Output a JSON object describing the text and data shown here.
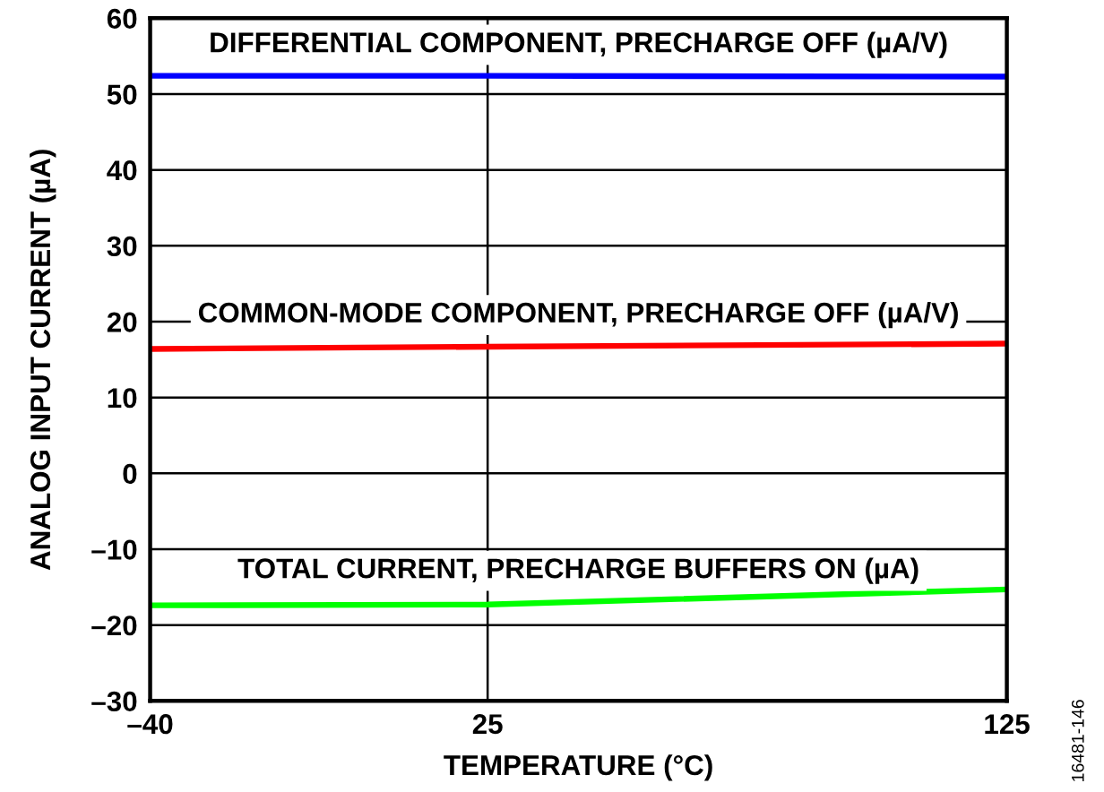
{
  "chart_data": {
    "type": "line",
    "xlabel": "TEMPERATURE (°C)",
    "ylabel": "ANALOG INPUT CURRENT (µA)",
    "xlim": [
      -40,
      125
    ],
    "xticks": [
      {
        "value": -40,
        "label": "–40"
      },
      25,
      125
    ],
    "ylim": [
      -30,
      60
    ],
    "yticks": [
      {
        "value": -30,
        "label": "–30"
      },
      {
        "value": -20,
        "label": "–20"
      },
      {
        "value": -10,
        "label": "–10"
      },
      0,
      10,
      20,
      30,
      40,
      50,
      60
    ],
    "grid": true,
    "line_style": "solid",
    "series": [
      {
        "name": "DIFFERENTIAL COMPONENT, PRECHARGE OFF (µA/V)",
        "color": "#0000ff",
        "x": [
          -40,
          25,
          125
        ],
        "values": [
          52.4,
          52.4,
          52.3
        ]
      },
      {
        "name": "COMMON-MODE COMPONENT, PRECHARGE OFF (µA/V)",
        "color": "#ff0000",
        "x": [
          -40,
          25,
          125
        ],
        "values": [
          16.4,
          16.7,
          17.1
        ]
      },
      {
        "name": "TOTAL CURRENT, PRECHARGE BUFFERS ON (µA)",
        "color": "#00ff00",
        "x": [
          -40,
          25,
          125
        ],
        "values": [
          -17.4,
          -17.3,
          -15.3
        ]
      }
    ],
    "annotations": [
      "16481-146"
    ]
  }
}
